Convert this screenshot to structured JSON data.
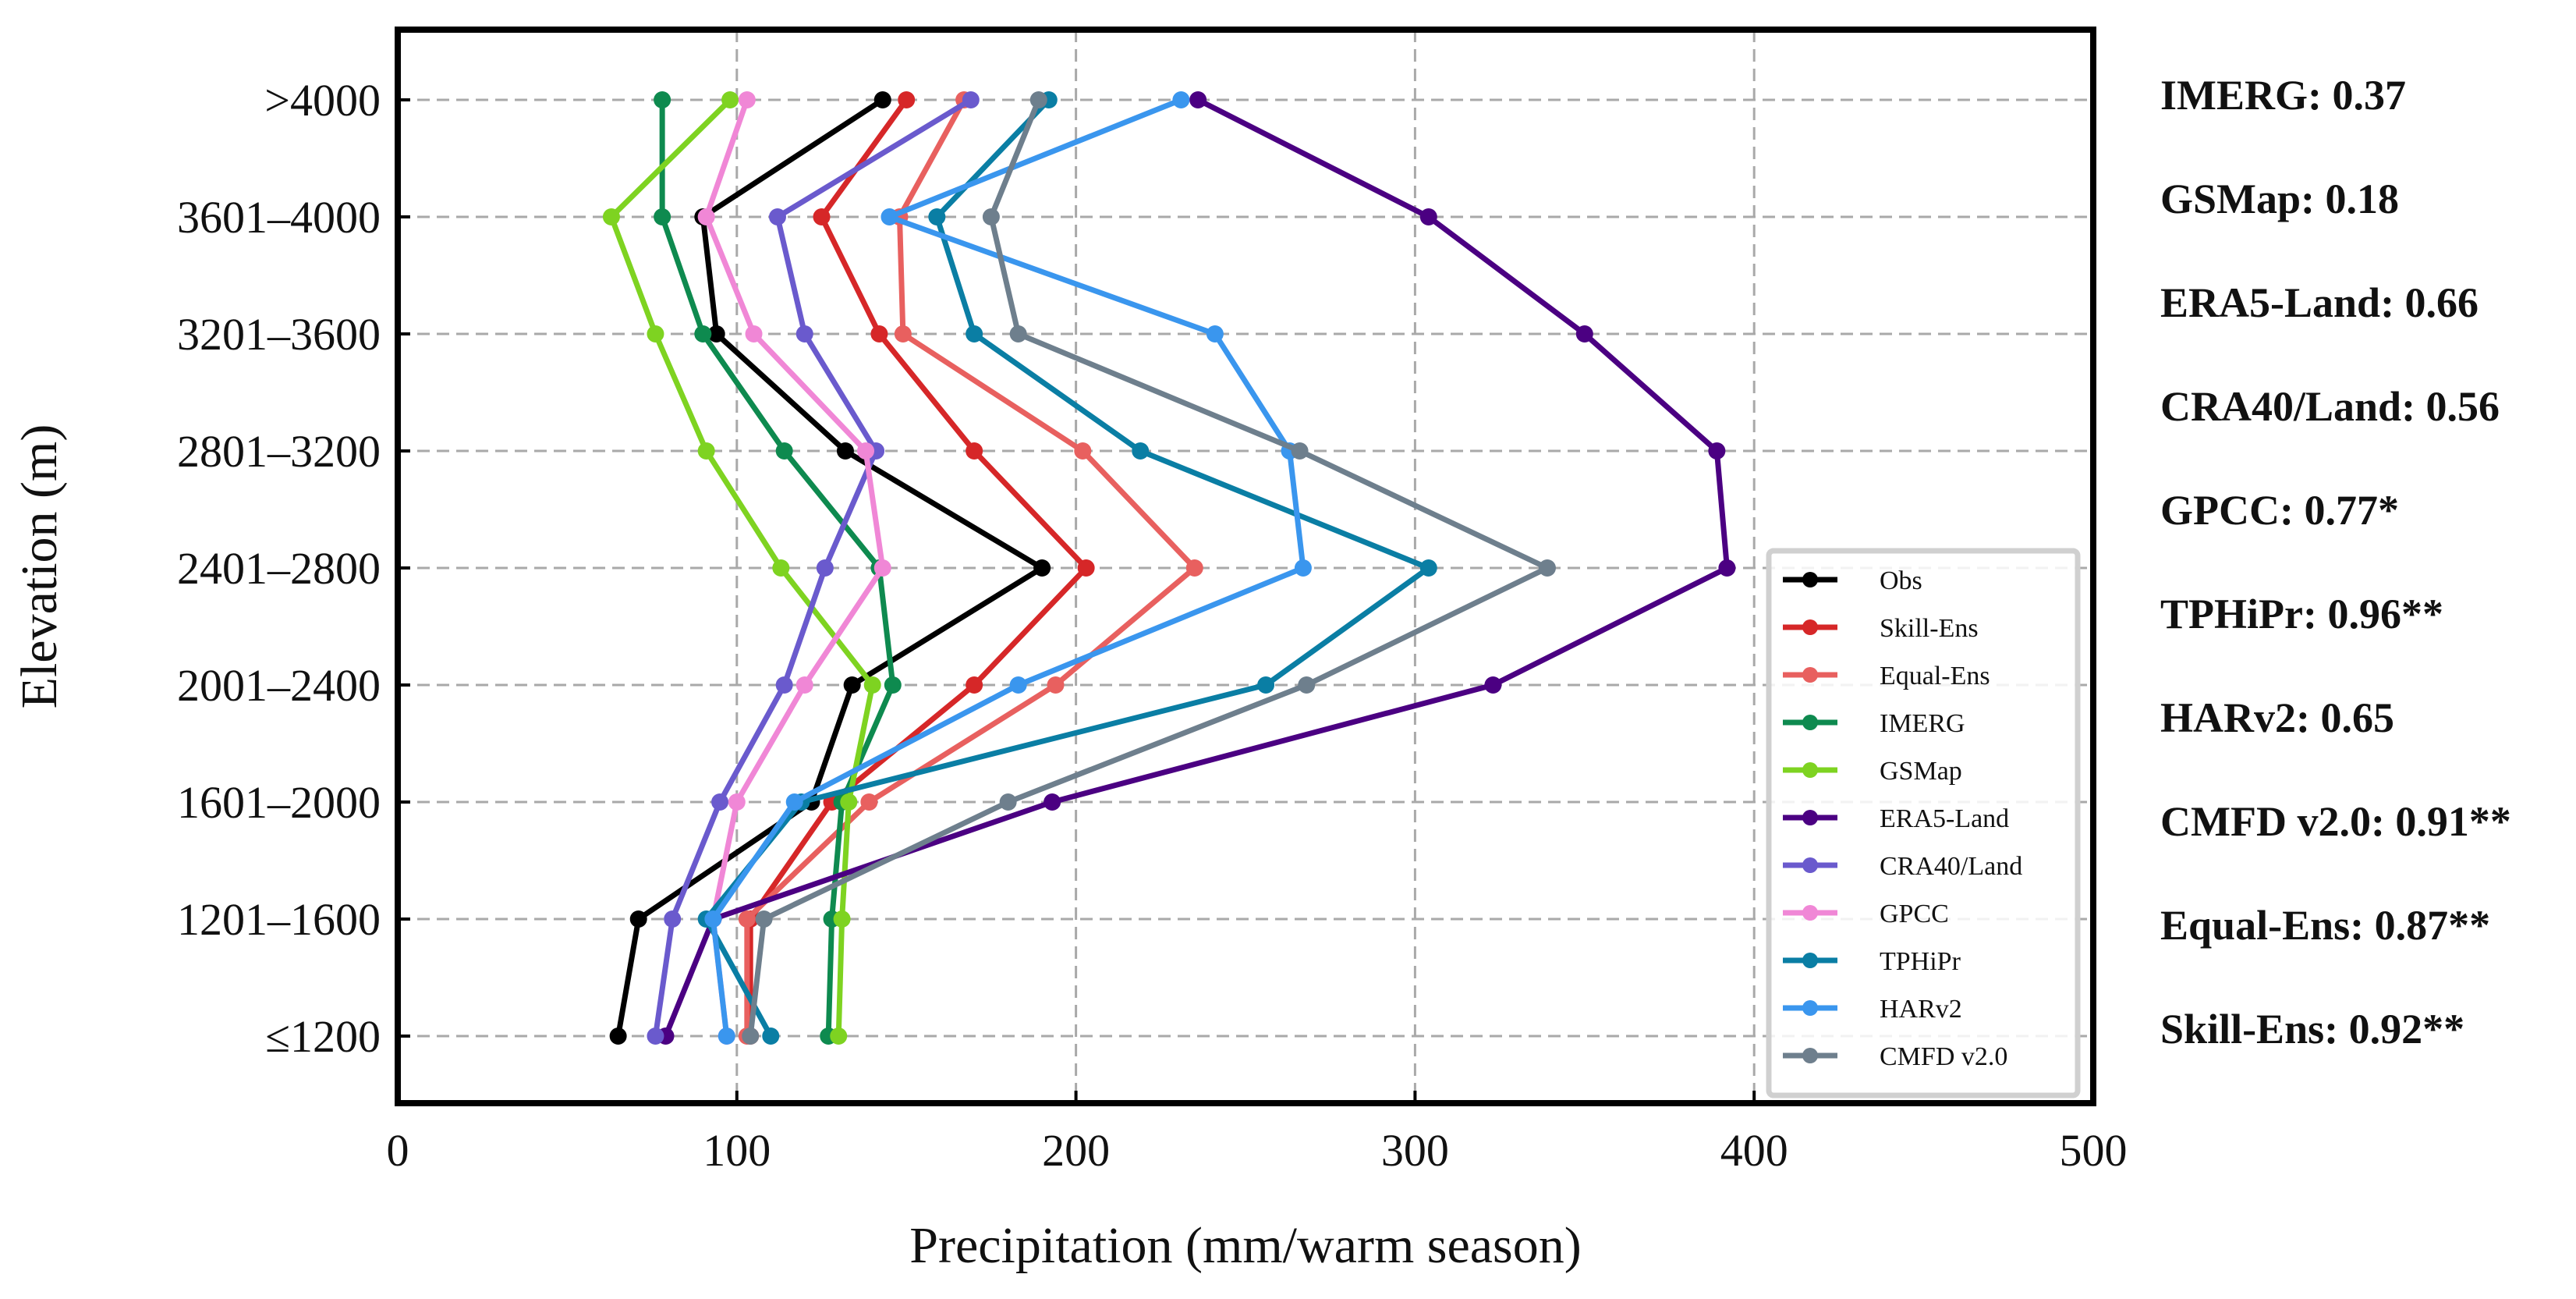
{
  "chart_data": {
    "type": "line",
    "title": "",
    "xlabel": "Precipitation (mm/warm season)",
    "ylabel": "Elevation (m)",
    "xlim": [
      0,
      500
    ],
    "xticks": [
      0,
      100,
      200,
      300,
      400,
      500
    ],
    "xtick_labels": [
      "0",
      "100",
      "200",
      "300",
      "400",
      "500"
    ],
    "categories": [
      "≤1200",
      "1201–1600",
      "1601–2000",
      "2001–2400",
      "2401–2800",
      "2801–3200",
      "3201–3600",
      "3601–4000",
      ">4000"
    ],
    "grid": true,
    "legend_position": "lower-right",
    "series": [
      {
        "name": "Obs",
        "color": "#000000",
        "values": [
          65,
          71,
          122,
          134,
          190,
          132,
          94,
          90,
          143
        ]
      },
      {
        "name": "Skill-Ens",
        "color": "#d62728",
        "values": [
          104,
          104,
          128,
          170,
          203,
          170,
          142,
          125,
          150
        ]
      },
      {
        "name": "Equal-Ens",
        "color": "#e8605f",
        "values": [
          103,
          103,
          139,
          194,
          235,
          202,
          149,
          148,
          167
        ]
      },
      {
        "name": "IMERG",
        "color": "#0e8a4f",
        "values": [
          127,
          128,
          131,
          146,
          142,
          114,
          90,
          78,
          78
        ]
      },
      {
        "name": "GSMap",
        "color": "#7ed321",
        "values": [
          130,
          131,
          133,
          140,
          113,
          91,
          76,
          63,
          98
        ]
      },
      {
        "name": "ERA5-Land",
        "color": "#4b0082",
        "values": [
          79,
          93,
          193,
          323,
          392,
          389,
          350,
          304,
          236
        ]
      },
      {
        "name": "CRA40/Land",
        "color": "#6a5acd",
        "values": [
          76,
          81,
          95,
          114,
          126,
          141,
          120,
          112,
          169
        ]
      },
      {
        "name": "GPCC",
        "color": "#f087d6",
        "values": [
          97,
          93,
          100,
          120,
          143,
          138,
          105,
          91,
          103
        ]
      },
      {
        "name": "TPHiPr",
        "color": "#0a7ea4",
        "values": [
          110,
          91,
          119,
          256,
          304,
          219,
          170,
          159,
          192
        ]
      },
      {
        "name": "HARv2",
        "color": "#3a96ee",
        "values": [
          97,
          93,
          117,
          183,
          267,
          263,
          241,
          145,
          231
        ]
      },
      {
        "name": "CMFD v2.0",
        "color": "#6e7f8d",
        "values": [
          104,
          108,
          180,
          268,
          339,
          266,
          183,
          175,
          189
        ]
      }
    ],
    "annotations": [
      "IMERG: 0.37",
      "GSMap: 0.18",
      "ERA5-Land: 0.66",
      "CRA40/Land: 0.56",
      "GPCC: 0.77*",
      "TPHiPr: 0.96**",
      "HARv2: 0.65",
      "CMFD v2.0: 0.91**",
      "Equal-Ens: 0.87**",
      "Skill-Ens: 0.92**"
    ]
  }
}
